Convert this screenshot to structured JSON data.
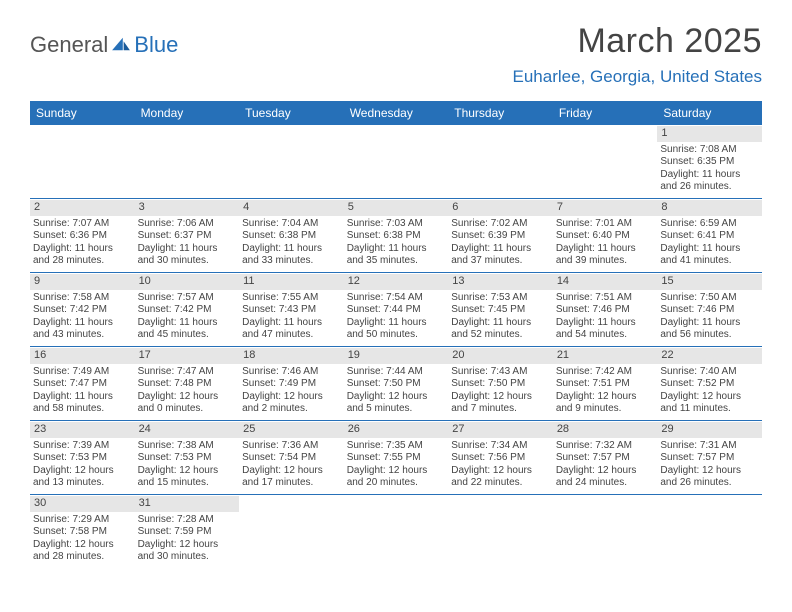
{
  "brand": {
    "partA": "General",
    "partB": "Blue"
  },
  "title": "March 2025",
  "location": "Euharlee, Georgia, United States",
  "colors": {
    "header_bg": "#2670b8",
    "header_text": "#ffffff",
    "daynum_bg": "#e6e6e6",
    "border": "#2670b8",
    "body_text": "#444444"
  },
  "fonts": {
    "title_size": 34,
    "location_size": 17,
    "dow_size": 12,
    "cell_size": 10
  },
  "days_of_week": [
    "Sunday",
    "Monday",
    "Tuesday",
    "Wednesday",
    "Thursday",
    "Friday",
    "Saturday"
  ],
  "weeks": [
    [
      {
        "n": "",
        "lines": []
      },
      {
        "n": "",
        "lines": []
      },
      {
        "n": "",
        "lines": []
      },
      {
        "n": "",
        "lines": []
      },
      {
        "n": "",
        "lines": []
      },
      {
        "n": "",
        "lines": []
      },
      {
        "n": "1",
        "lines": [
          "Sunrise: 7:08 AM",
          "Sunset: 6:35 PM",
          "Daylight: 11 hours",
          "and 26 minutes."
        ]
      }
    ],
    [
      {
        "n": "2",
        "lines": [
          "Sunrise: 7:07 AM",
          "Sunset: 6:36 PM",
          "Daylight: 11 hours",
          "and 28 minutes."
        ]
      },
      {
        "n": "3",
        "lines": [
          "Sunrise: 7:06 AM",
          "Sunset: 6:37 PM",
          "Daylight: 11 hours",
          "and 30 minutes."
        ]
      },
      {
        "n": "4",
        "lines": [
          "Sunrise: 7:04 AM",
          "Sunset: 6:38 PM",
          "Daylight: 11 hours",
          "and 33 minutes."
        ]
      },
      {
        "n": "5",
        "lines": [
          "Sunrise: 7:03 AM",
          "Sunset: 6:38 PM",
          "Daylight: 11 hours",
          "and 35 minutes."
        ]
      },
      {
        "n": "6",
        "lines": [
          "Sunrise: 7:02 AM",
          "Sunset: 6:39 PM",
          "Daylight: 11 hours",
          "and 37 minutes."
        ]
      },
      {
        "n": "7",
        "lines": [
          "Sunrise: 7:01 AM",
          "Sunset: 6:40 PM",
          "Daylight: 11 hours",
          "and 39 minutes."
        ]
      },
      {
        "n": "8",
        "lines": [
          "Sunrise: 6:59 AM",
          "Sunset: 6:41 PM",
          "Daylight: 11 hours",
          "and 41 minutes."
        ]
      }
    ],
    [
      {
        "n": "9",
        "lines": [
          "Sunrise: 7:58 AM",
          "Sunset: 7:42 PM",
          "Daylight: 11 hours",
          "and 43 minutes."
        ]
      },
      {
        "n": "10",
        "lines": [
          "Sunrise: 7:57 AM",
          "Sunset: 7:42 PM",
          "Daylight: 11 hours",
          "and 45 minutes."
        ]
      },
      {
        "n": "11",
        "lines": [
          "Sunrise: 7:55 AM",
          "Sunset: 7:43 PM",
          "Daylight: 11 hours",
          "and 47 minutes."
        ]
      },
      {
        "n": "12",
        "lines": [
          "Sunrise: 7:54 AM",
          "Sunset: 7:44 PM",
          "Daylight: 11 hours",
          "and 50 minutes."
        ]
      },
      {
        "n": "13",
        "lines": [
          "Sunrise: 7:53 AM",
          "Sunset: 7:45 PM",
          "Daylight: 11 hours",
          "and 52 minutes."
        ]
      },
      {
        "n": "14",
        "lines": [
          "Sunrise: 7:51 AM",
          "Sunset: 7:46 PM",
          "Daylight: 11 hours",
          "and 54 minutes."
        ]
      },
      {
        "n": "15",
        "lines": [
          "Sunrise: 7:50 AM",
          "Sunset: 7:46 PM",
          "Daylight: 11 hours",
          "and 56 minutes."
        ]
      }
    ],
    [
      {
        "n": "16",
        "lines": [
          "Sunrise: 7:49 AM",
          "Sunset: 7:47 PM",
          "Daylight: 11 hours",
          "and 58 minutes."
        ]
      },
      {
        "n": "17",
        "lines": [
          "Sunrise: 7:47 AM",
          "Sunset: 7:48 PM",
          "Daylight: 12 hours",
          "and 0 minutes."
        ]
      },
      {
        "n": "18",
        "lines": [
          "Sunrise: 7:46 AM",
          "Sunset: 7:49 PM",
          "Daylight: 12 hours",
          "and 2 minutes."
        ]
      },
      {
        "n": "19",
        "lines": [
          "Sunrise: 7:44 AM",
          "Sunset: 7:50 PM",
          "Daylight: 12 hours",
          "and 5 minutes."
        ]
      },
      {
        "n": "20",
        "lines": [
          "Sunrise: 7:43 AM",
          "Sunset: 7:50 PM",
          "Daylight: 12 hours",
          "and 7 minutes."
        ]
      },
      {
        "n": "21",
        "lines": [
          "Sunrise: 7:42 AM",
          "Sunset: 7:51 PM",
          "Daylight: 12 hours",
          "and 9 minutes."
        ]
      },
      {
        "n": "22",
        "lines": [
          "Sunrise: 7:40 AM",
          "Sunset: 7:52 PM",
          "Daylight: 12 hours",
          "and 11 minutes."
        ]
      }
    ],
    [
      {
        "n": "23",
        "lines": [
          "Sunrise: 7:39 AM",
          "Sunset: 7:53 PM",
          "Daylight: 12 hours",
          "and 13 minutes."
        ]
      },
      {
        "n": "24",
        "lines": [
          "Sunrise: 7:38 AM",
          "Sunset: 7:53 PM",
          "Daylight: 12 hours",
          "and 15 minutes."
        ]
      },
      {
        "n": "25",
        "lines": [
          "Sunrise: 7:36 AM",
          "Sunset: 7:54 PM",
          "Daylight: 12 hours",
          "and 17 minutes."
        ]
      },
      {
        "n": "26",
        "lines": [
          "Sunrise: 7:35 AM",
          "Sunset: 7:55 PM",
          "Daylight: 12 hours",
          "and 20 minutes."
        ]
      },
      {
        "n": "27",
        "lines": [
          "Sunrise: 7:34 AM",
          "Sunset: 7:56 PM",
          "Daylight: 12 hours",
          "and 22 minutes."
        ]
      },
      {
        "n": "28",
        "lines": [
          "Sunrise: 7:32 AM",
          "Sunset: 7:57 PM",
          "Daylight: 12 hours",
          "and 24 minutes."
        ]
      },
      {
        "n": "29",
        "lines": [
          "Sunrise: 7:31 AM",
          "Sunset: 7:57 PM",
          "Daylight: 12 hours",
          "and 26 minutes."
        ]
      }
    ],
    [
      {
        "n": "30",
        "lines": [
          "Sunrise: 7:29 AM",
          "Sunset: 7:58 PM",
          "Daylight: 12 hours",
          "and 28 minutes."
        ]
      },
      {
        "n": "31",
        "lines": [
          "Sunrise: 7:28 AM",
          "Sunset: 7:59 PM",
          "Daylight: 12 hours",
          "and 30 minutes."
        ]
      },
      {
        "n": "",
        "lines": []
      },
      {
        "n": "",
        "lines": []
      },
      {
        "n": "",
        "lines": []
      },
      {
        "n": "",
        "lines": []
      },
      {
        "n": "",
        "lines": []
      }
    ]
  ]
}
